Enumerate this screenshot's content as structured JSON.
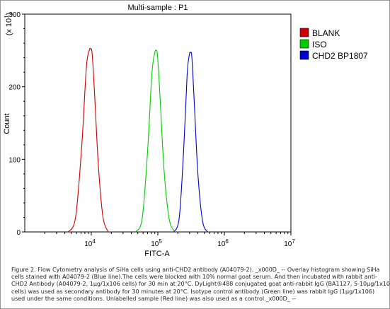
{
  "chart_data": {
    "type": "area",
    "title": "Multi-sample : P1",
    "xlabel": "FITC-A",
    "ylabel": "Count",
    "y_multiplier": "(x 10^1)",
    "xscale": "log",
    "xlim": [
      1000,
      10000000
    ],
    "ylim": [
      0,
      300
    ],
    "x_ticks": [
      {
        "value": 10000,
        "base": "10",
        "exp": "4"
      },
      {
        "value": 100000,
        "base": "10",
        "exp": "5"
      },
      {
        "value": 1000000,
        "base": "10",
        "exp": "6"
      },
      {
        "value": 10000000,
        "base": "10",
        "exp": "7"
      }
    ],
    "y_ticks": [
      "0",
      "100",
      "200",
      "300"
    ],
    "legend_position": "right",
    "series": [
      {
        "name": "BLANK",
        "color": "#cc0000",
        "x": [
          4500,
          5800,
          7200,
          8400,
          9300,
          9800,
          10300,
          11200,
          12800,
          15000,
          18000
        ],
        "values": [
          0,
          20,
          120,
          225,
          250,
          252,
          245,
          190,
          90,
          20,
          0
        ]
      },
      {
        "name": "ISO",
        "color": "#00cc00",
        "x": [
          46000,
          58000,
          70000,
          81000,
          89000,
          94000,
          99000,
          108000,
          124000,
          148000,
          180000
        ],
        "values": [
          0,
          18,
          110,
          215,
          245,
          250,
          242,
          185,
          85,
          18,
          0
        ]
      },
      {
        "name": "CHD2 BP1807",
        "color": "#0000cc",
        "x": [
          175000,
          210000,
          245000,
          275000,
          296000,
          310000,
          325000,
          352000,
          400000,
          470000,
          560000
        ],
        "values": [
          0,
          20,
          115,
          215,
          243,
          247,
          240,
          180,
          80,
          15,
          0
        ]
      }
    ]
  },
  "caption_lines": [
    "Figure 2. Flow Cytometry analysis of SiHa cells using anti-CHD2 antibody (A04079-2). _x000D_ -- Overlay histogram showing SiHa",
    "cells stained with A04079-2 (Blue line).The cells were blocked with 10% normal goat serum. And then incubated with rabbit anti-",
    "CHD2 Antibody (A04079-2, 1μg/1x106 cells) for 30 min at 20°C. DyLight®488 conjugated goat anti-rabbit IgG (BA1127, 5-10μg/1x106",
    "cells) was used as secondary antibody for 30 minutes at 20°C. Isotype control antibody (Green line) was rabbit IgG (1μg/1x106)",
    "used under the same conditions. Unlabelled sample (Red line) was also used as a control._x000D_ --"
  ]
}
